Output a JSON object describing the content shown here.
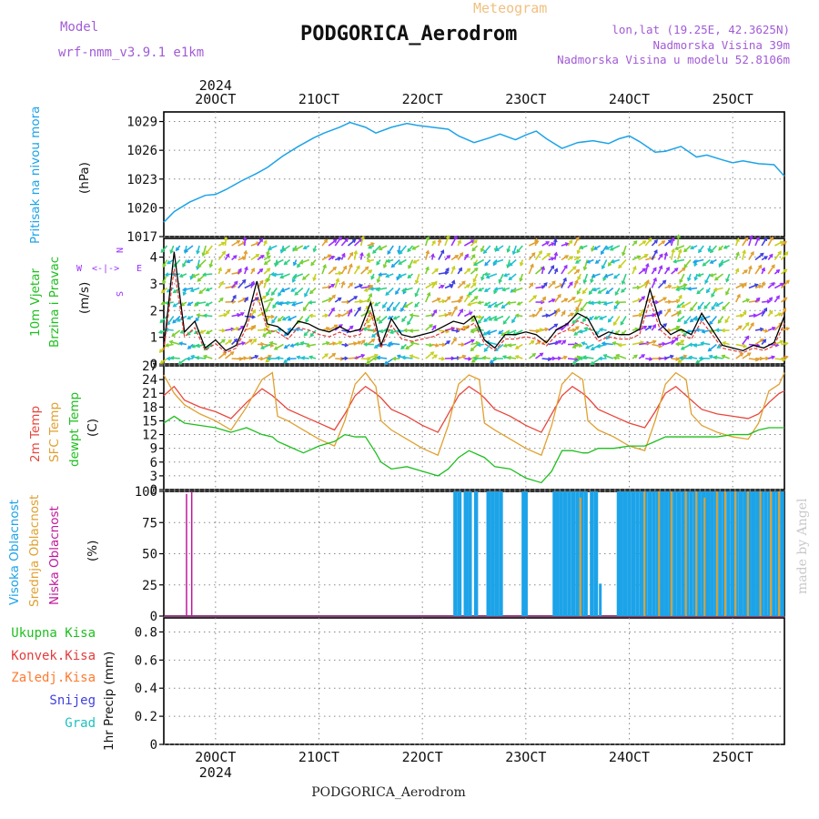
{
  "header": {
    "model_label": "Model",
    "model_name": "wrf-nmm_v3.9.1  e1km",
    "meteogram_label": "Meteogram",
    "station_title": "PODGORICA_Aerodrom",
    "coords": "lon,lat (19.25E, 42.3625N)",
    "elevation": "Nadmorska Visina 39m",
    "model_elevation": "Nadmorska Visina u modelu 52.8106m",
    "bottom_title": "PODGORICA_Aerodrom",
    "credit": "made by Angel"
  },
  "colors": {
    "pressure": "#1ca3e8",
    "temp2m": "#e8463c",
    "sfc": "#e0a030",
    "dewpt": "#1fbf1f",
    "high_cloud": "#1ca3e8",
    "mid_cloud": "#e0a030",
    "low_cloud": "#c0189c",
    "purple": "#9b30ff",
    "grid": "#888888"
  },
  "chart_data": [
    {
      "type": "line",
      "panel": "pressure",
      "ylabel": [
        "Pritisak na nivou mora",
        "(hPa)"
      ],
      "x_ticks": [
        "20OCT",
        "21OCT",
        "22OCT",
        "23OCT",
        "24OCT",
        "25OCT"
      ],
      "year": "2024",
      "yticks": [
        "1017",
        "1020",
        "1023",
        "1026",
        "1029"
      ],
      "ylim": [
        1017,
        1030
      ],
      "x": [
        19.5,
        19.6,
        19.75,
        19.9,
        20.0,
        20.1,
        20.25,
        20.4,
        20.5,
        20.65,
        20.8,
        20.95,
        21.05,
        21.2,
        21.3,
        21.45,
        21.55,
        21.7,
        21.85,
        21.95,
        22.1,
        22.25,
        22.35,
        22.5,
        22.65,
        22.75,
        22.9,
        23.0,
        23.1,
        23.2,
        23.35,
        23.5,
        23.65,
        23.8,
        23.9,
        24.0,
        24.1,
        24.25,
        24.35,
        24.5,
        24.65,
        24.75,
        24.9,
        25.0,
        25.1,
        25.25,
        25.4,
        25.5
      ],
      "values": [
        1018.5,
        1019.6,
        1020.6,
        1021.3,
        1021.4,
        1021.9,
        1022.8,
        1023.6,
        1024.2,
        1025.4,
        1026.4,
        1027.3,
        1027.8,
        1028.4,
        1028.9,
        1028.4,
        1027.8,
        1028.4,
        1028.8,
        1028.6,
        1028.4,
        1028.2,
        1027.5,
        1026.8,
        1027.3,
        1027.7,
        1027.1,
        1027.6,
        1028.0,
        1027.2,
        1026.2,
        1026.8,
        1027.0,
        1026.7,
        1027.2,
        1027.5,
        1026.9,
        1025.8,
        1025.9,
        1026.4,
        1025.3,
        1025.5,
        1025.0,
        1024.7,
        1024.9,
        1024.6,
        1024.5,
        1023.3
      ],
      "grid": true
    },
    {
      "type": "line",
      "panel": "wind",
      "ylabel": [
        "10m Vjetar",
        "Brzina i Pravac",
        "(m/s)"
      ],
      "compass": [
        "W",
        "<-|->",
        "E",
        "N",
        "^",
        "S"
      ],
      "yticks": [
        "0",
        "1",
        "2",
        "3",
        "4"
      ],
      "ylim": [
        0,
        4.7
      ],
      "x": [
        19.5,
        19.6,
        19.7,
        19.8,
        19.9,
        20.0,
        20.1,
        20.2,
        20.3,
        20.4,
        20.5,
        20.6,
        20.7,
        20.8,
        20.9,
        21.0,
        21.1,
        21.2,
        21.3,
        21.4,
        21.5,
        21.6,
        21.7,
        21.8,
        21.9,
        22.0,
        22.1,
        22.2,
        22.3,
        22.4,
        22.5,
        22.6,
        22.7,
        22.8,
        22.9,
        23.0,
        23.1,
        23.2,
        23.3,
        23.4,
        23.5,
        23.6,
        23.7,
        23.8,
        23.9,
        24.0,
        24.1,
        24.2,
        24.3,
        24.4,
        24.5,
        24.6,
        24.7,
        24.8,
        24.9,
        25.0,
        25.1,
        25.2,
        25.3,
        25.4,
        25.5
      ],
      "values": [
        0.6,
        4.2,
        1.2,
        1.6,
        0.6,
        0.9,
        0.5,
        0.7,
        1.6,
        3.1,
        1.5,
        1.4,
        1.1,
        1.6,
        1.5,
        1.3,
        1.2,
        1.4,
        1.2,
        1.3,
        2.3,
        0.7,
        1.7,
        1.1,
        1.0,
        1.1,
        1.2,
        1.4,
        1.6,
        1.5,
        1.8,
        0.9,
        0.6,
        1.1,
        1.1,
        1.2,
        1.1,
        0.8,
        1.3,
        1.5,
        1.9,
        1.7,
        1.0,
        1.2,
        1.1,
        1.1,
        1.3,
        2.8,
        1.5,
        1.1,
        1.3,
        1.1,
        1.9,
        1.3,
        0.7,
        0.6,
        0.5,
        0.7,
        0.6,
        0.8,
        1.8
      ],
      "grid": true
    },
    {
      "type": "line",
      "panel": "temperature",
      "ylabel": [
        "2m Temp",
        "SFC Temp",
        "dewpt Temp",
        "(C)"
      ],
      "yticks": [
        "0",
        "3",
        "6",
        "9",
        "12",
        "15",
        "18",
        "21",
        "24",
        "27"
      ],
      "ylim": [
        0,
        27
      ],
      "x": [
        19.5,
        19.6,
        19.7,
        19.85,
        20.0,
        20.15,
        20.3,
        20.45,
        20.55,
        20.6,
        20.7,
        20.85,
        21.0,
        21.15,
        21.25,
        21.35,
        21.45,
        21.55,
        21.6,
        21.7,
        21.85,
        22.0,
        22.15,
        22.25,
        22.35,
        22.45,
        22.55,
        22.6,
        22.7,
        22.85,
        23.0,
        23.15,
        23.25,
        23.35,
        23.45,
        23.55,
        23.6,
        23.7,
        23.85,
        24.0,
        24.15,
        24.25,
        24.35,
        24.45,
        24.55,
        24.6,
        24.7,
        24.85,
        25.0,
        25.15,
        25.25,
        25.35,
        25.45,
        25.5
      ],
      "series": [
        {
          "name": "2m Temp",
          "color_key": "temp2m",
          "values": [
            20.5,
            22.5,
            19.5,
            18.0,
            17.0,
            15.5,
            19.0,
            22.0,
            20.5,
            19.5,
            17.5,
            16.0,
            14.5,
            13.0,
            16.5,
            20.5,
            22.5,
            21.0,
            20.0,
            17.5,
            16.0,
            14.0,
            12.5,
            16.5,
            20.5,
            22.5,
            21.0,
            20.0,
            17.5,
            16.0,
            14.0,
            12.5,
            16.5,
            20.5,
            22.5,
            21.0,
            20.0,
            17.5,
            16.0,
            14.5,
            13.5,
            17.0,
            21.0,
            22.5,
            20.5,
            19.5,
            17.5,
            16.5,
            16.0,
            15.5,
            16.5,
            19.0,
            21.0,
            21.5
          ]
        },
        {
          "name": "SFC Temp",
          "color_key": "sfc",
          "values": [
            25.0,
            21.0,
            18.5,
            16.5,
            15.0,
            13.0,
            18.0,
            24.0,
            25.5,
            16.0,
            15.0,
            13.0,
            11.0,
            9.5,
            15.0,
            23.0,
            25.5,
            22.5,
            15.0,
            13.0,
            11.0,
            9.0,
            7.5,
            14.0,
            23.0,
            25.0,
            24.0,
            14.5,
            13.0,
            11.0,
            9.0,
            7.5,
            14.0,
            23.0,
            25.5,
            24.0,
            15.0,
            13.0,
            11.5,
            9.5,
            8.5,
            15.0,
            23.0,
            25.5,
            24.0,
            16.5,
            14.0,
            12.5,
            11.5,
            11.0,
            14.5,
            21.5,
            23.0,
            25.5
          ]
        },
        {
          "name": "dewpt Temp",
          "color_key": "dewpt",
          "values": [
            14.5,
            16.0,
            14.5,
            14.0,
            13.5,
            12.5,
            13.5,
            12.0,
            11.5,
            10.5,
            9.5,
            8.0,
            9.5,
            10.5,
            12.0,
            11.5,
            11.5,
            8.0,
            6.0,
            4.5,
            5.0,
            4.0,
            3.0,
            4.5,
            7.0,
            8.5,
            7.5,
            7.0,
            5.0,
            4.5,
            2.5,
            1.5,
            4.0,
            8.5,
            8.5,
            8.0,
            8.0,
            9.0,
            9.0,
            9.5,
            9.5,
            10.5,
            11.5,
            11.5,
            11.5,
            11.5,
            11.5,
            11.5,
            12.0,
            12.0,
            13.0,
            13.5,
            13.5,
            13.5
          ]
        }
      ],
      "grid": true
    },
    {
      "type": "bar",
      "panel": "cloud",
      "ylabel": [
        "Visoka Oblacnost",
        "Srednja Oblacnost",
        "Niska Oblacnost",
        "(%)"
      ],
      "yticks": [
        "0",
        "25",
        "50",
        "75",
        "100"
      ],
      "ylim": [
        0,
        100
      ],
      "series": [
        {
          "name": "Visoka Oblacnost",
          "color_key": "high_cloud",
          "x": [
            22.32,
            22.36,
            22.42,
            22.46,
            22.52,
            22.64,
            22.68,
            22.72,
            22.76,
            22.98,
            23.0,
            23.28,
            23.3,
            23.34,
            23.38,
            23.42,
            23.46,
            23.5,
            23.54,
            23.58,
            23.64,
            23.68,
            23.9,
            23.92,
            23.96,
            24.0,
            24.04,
            24.08,
            24.12,
            24.16,
            24.2,
            24.24,
            24.28,
            24.32,
            24.36,
            24.4,
            24.44,
            24.48,
            24.52,
            24.56,
            24.6,
            24.64,
            24.68,
            24.72,
            24.76,
            24.8,
            24.84,
            24.88,
            24.92,
            24.96,
            25.0,
            25.04,
            25.08,
            25.12,
            25.16,
            25.2,
            25.24,
            25.28,
            25.32,
            25.36,
            25.4,
            25.44,
            25.48
          ],
          "values": [
            100,
            100,
            100,
            100,
            100,
            100,
            100,
            100,
            100,
            100,
            100,
            100,
            100,
            100,
            100,
            100,
            100,
            100,
            100,
            100,
            100,
            100,
            100,
            100,
            100,
            100,
            100,
            100,
            100,
            100,
            100,
            100,
            100,
            100,
            100,
            100,
            100,
            100,
            100,
            100,
            100,
            100,
            100,
            100,
            100,
            100,
            100,
            100,
            100,
            100,
            100,
            100,
            100,
            100,
            100,
            100,
            100,
            100,
            100,
            100,
            100,
            100,
            100
          ]
        },
        {
          "name": "Srednja Oblacnost",
          "color_key": "mid_cloud",
          "x": [
            23.54,
            24.16,
            24.3,
            24.42,
            24.56,
            24.66,
            24.74,
            24.86,
            24.94,
            25.04,
            25.16,
            25.28,
            25.38,
            25.46
          ],
          "values": [
            95,
            100,
            100,
            100,
            100,
            100,
            95,
            100,
            100,
            100,
            100,
            100,
            100,
            100
          ]
        },
        {
          "name": "Niska Oblacnost",
          "color_key": "low_cloud",
          "x": [
            19.72,
            19.77
          ],
          "values": [
            98,
            100
          ]
        }
      ],
      "extra_bars": {
        "x": [
          23.72
        ],
        "values": [
          26
        ]
      },
      "grid": true
    },
    {
      "type": "line",
      "panel": "precip",
      "ylabel": [
        "1hr Precip (mm)"
      ],
      "legend": [
        "Ukupna Kisa",
        "Konvek.Kisa",
        "Zaledj.Kisa",
        "Snijeg",
        "Grad"
      ],
      "yticks": [
        "0",
        "0.2",
        "0.4",
        "0.6",
        "0.8"
      ],
      "ylim": [
        0,
        0.9
      ],
      "values": [],
      "grid": true
    }
  ]
}
